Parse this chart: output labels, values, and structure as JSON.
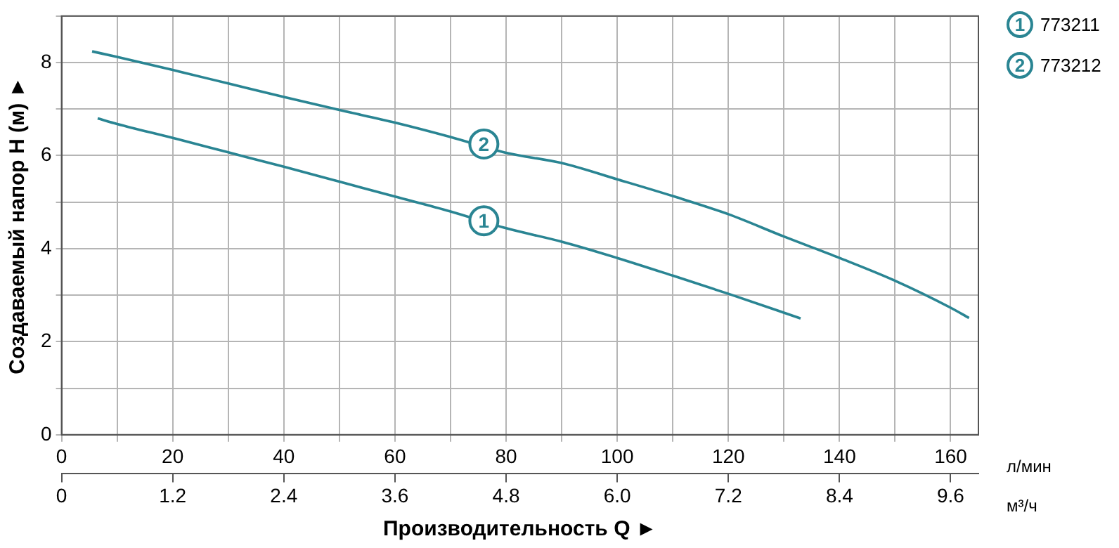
{
  "chart_data": {
    "type": "line",
    "xlabel": "Производительность Q ►",
    "ylabel": "Создаваемый напор H (м) ►",
    "series": [
      {
        "name": "773211",
        "color": "#2a8593",
        "x": [
          6.5,
          10,
          20,
          30,
          40,
          50,
          60,
          70,
          80,
          90,
          100,
          110,
          120,
          133
        ],
        "values": [
          6.8,
          6.68,
          6.38,
          6.07,
          5.76,
          5.44,
          5.12,
          4.8,
          4.44,
          4.15,
          3.8,
          3.42,
          3.03,
          2.5
        ]
      },
      {
        "name": "773212",
        "color": "#2a8593",
        "x": [
          5.5,
          10,
          20,
          30,
          40,
          50,
          60,
          70,
          80,
          90,
          100,
          110,
          120,
          130,
          140,
          150,
          160,
          163.3
        ],
        "values": [
          8.24,
          8.12,
          7.84,
          7.55,
          7.26,
          6.98,
          6.71,
          6.4,
          6.06,
          5.84,
          5.49,
          5.13,
          4.74,
          4.26,
          3.8,
          3.31,
          2.73,
          2.51
        ]
      }
    ],
    "xlim": [
      0,
      165
    ],
    "xticks": [
      0,
      {
        "value": 10,
        "label": null
      },
      20,
      {
        "value": 30,
        "label": null
      },
      40,
      {
        "value": 50,
        "label": null
      },
      60,
      {
        "value": 70,
        "label": null
      },
      80,
      {
        "value": 90,
        "label": null
      },
      100,
      {
        "value": 110,
        "label": null
      },
      120,
      {
        "value": 130,
        "label": null
      },
      140,
      {
        "value": 150,
        "label": null
      },
      160
    ],
    "ylim": [
      0,
      9
    ],
    "yticks": [
      0,
      {
        "value": 1,
        "label": null
      },
      2,
      {
        "value": 3,
        "label": null
      },
      4,
      {
        "value": 5,
        "label": null
      },
      6,
      {
        "value": 7,
        "label": null
      },
      8,
      {
        "value": 9,
        "label": null
      }
    ],
    "x2lim": [
      0,
      9.9
    ],
    "x2ticks": [
      0,
      1.2,
      2.4,
      3.6,
      4.8,
      {
        "value": 6,
        "label": "6.0"
      },
      7.2,
      8.4,
      9.6
    ],
    "annotations": [
      {
        "text": "1",
        "x": 76,
        "y": 4.6
      },
      {
        "text": "2",
        "x": 76,
        "y": 6.25
      },
      "л/мин",
      "м³/ч"
    ],
    "grid": true,
    "legend": "top right",
    "marker": "none",
    "line_style": "solid"
  }
}
